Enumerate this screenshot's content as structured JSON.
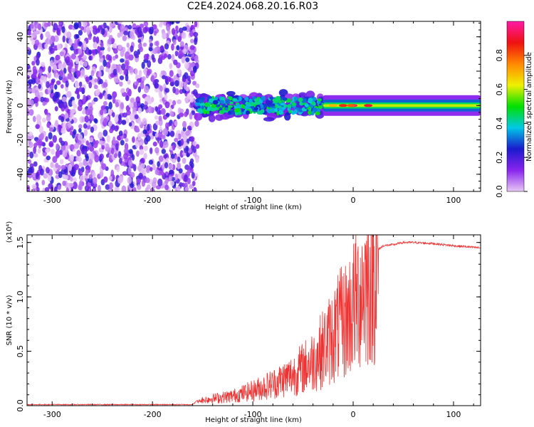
{
  "title": "C2E4.2024.068.20.16.R03",
  "chart_data": [
    {
      "type": "heatmap",
      "xlabel": "Height of straight line (km)",
      "ylabel": "Frequency (Hz)",
      "xlim": [
        -325,
        127
      ],
      "ylim": [
        -50,
        49
      ],
      "x_ticks": [
        -300,
        -200,
        -100,
        0,
        100
      ],
      "x_tick_labels": [
        "-300",
        "-200",
        "-100",
        "0",
        "100"
      ],
      "y_ticks": [
        -40,
        -20,
        0,
        20,
        40
      ],
      "y_tick_labels": [
        "-40",
        "-20",
        "0",
        "20",
        "40"
      ],
      "colorbar": {
        "label": "Normalized spectral amplitude",
        "range": [
          0.0,
          1.0
        ],
        "ticks": [
          0.0,
          0.2,
          0.4,
          0.6,
          0.8
        ],
        "tick_labels": [
          "0.0",
          "0.2",
          "0.4",
          "0.6",
          "0.8"
        ],
        "colors": [
          "#e8c8f4",
          "#8a24ee",
          "#1a1acc",
          "#00c8e6",
          "#00e000",
          "#f0f000",
          "#ff8800",
          "#ee1111",
          "#ff1aa8"
        ]
      },
      "regions": [
        {
          "x_range": [
            -325,
            -155
          ],
          "frequency_range": [
            -50,
            49
          ],
          "amplitude_range": [
            0.0,
            0.25
          ],
          "description": "noise"
        },
        {
          "x_range": [
            -155,
            -30
          ],
          "frequency_range": [
            -10,
            8
          ],
          "amplitude_range": [
            0.1,
            0.5
          ]
        },
        {
          "x_range": [
            -30,
            127
          ],
          "frequency_range": [
            -2,
            2
          ],
          "amplitude_range": [
            0.3,
            0.95
          ]
        }
      ]
    },
    {
      "type": "line",
      "xlabel": "Height of straight line (km)",
      "ylabel": "SNR (10 * v/v)",
      "y_scale_label": "(x10⁴)",
      "xlim": [
        -325,
        127
      ],
      "ylim": [
        0,
        1.57
      ],
      "x_ticks": [
        -300,
        -200,
        -100,
        0,
        100
      ],
      "x_tick_labels": [
        "-300",
        "-200",
        "-100",
        "0",
        "100"
      ],
      "y_ticks": [
        0.0,
        0.5,
        1.0,
        1.5
      ],
      "y_tick_labels": [
        "0.0",
        "0.5",
        "1.0",
        "1.5"
      ],
      "line_color": "#ee3333",
      "series": [
        {
          "x": [
            -325,
            -300,
            -250,
            -200,
            -160,
            -155,
            -150,
            -120,
            -100,
            -80,
            -60,
            -40,
            -25,
            -15,
            -10,
            -5,
            0,
            10,
            20,
            30,
            40,
            50,
            60,
            80,
            100,
            127
          ],
          "y": [
            0.01,
            0.01,
            0.01,
            0.01,
            0.01,
            0.05,
            0.1,
            0.15,
            0.22,
            0.3,
            0.4,
            0.55,
            0.75,
            0.9,
            0.95,
            1.0,
            1.1,
            1.3,
            1.4,
            1.47,
            1.48,
            1.5,
            1.5,
            1.49,
            1.47,
            1.45
          ]
        }
      ]
    }
  ]
}
